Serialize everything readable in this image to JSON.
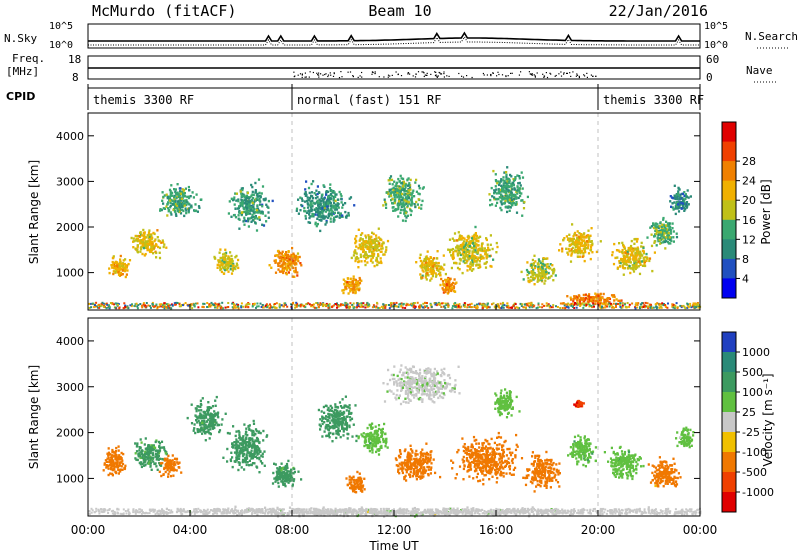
{
  "header": {
    "station": "McMurdo (fitACF)",
    "beam": "Beam 10",
    "date": "22/Jan/2016"
  },
  "top_panels": {
    "nsky_label": "N.Sky",
    "nsky_ticks": [
      "10^5",
      "10^0"
    ],
    "nsearch_label": "N.Search",
    "nsearch_ticks": [
      "10^5",
      "10^0"
    ],
    "freq_label_1": "Freq.",
    "freq_label_2": "[MHz]",
    "freq_ticks": [
      "18",
      "8"
    ],
    "nave_label": "Nave",
    "nave_ticks": [
      "60",
      "0"
    ],
    "cpid_label": "CPID",
    "cpid_segments": [
      {
        "label": "themis 3300 RF",
        "start": 0,
        "end": 8
      },
      {
        "label": "normal (fast) 151 RF",
        "start": 8,
        "end": 20
      },
      {
        "label": "themis 3300 RF",
        "start": 20,
        "end": 24
      }
    ]
  },
  "chart_data": [
    {
      "type": "heatmap",
      "name": "power",
      "ylabel": "Slant Range [km]",
      "ylim": [
        180,
        4500
      ],
      "y_ticks": [
        "1000",
        "2000",
        "3000",
        "4000"
      ],
      "xlim": [
        0,
        24
      ],
      "colorbar": {
        "label": "Power [dB]",
        "ticks": [
          "4",
          "8",
          "12",
          "16",
          "20",
          "24",
          "28"
        ],
        "colors": [
          "#0000f0",
          "#2050c0",
          "#2a8a78",
          "#3aa870",
          "#c0c018",
          "#f0b000",
          "#f08000",
          "#f04000",
          "#e00000"
        ]
      },
      "blobs": [
        {
          "t": 1.2,
          "r": 1150,
          "w": 0.5,
          "h": 300,
          "v": 20
        },
        {
          "t": 2.3,
          "r": 1650,
          "w": 0.9,
          "h": 400,
          "v": 18
        },
        {
          "t": 3.5,
          "r": 2600,
          "w": 1.0,
          "h": 450,
          "v": 12
        },
        {
          "t": 5.4,
          "r": 1250,
          "w": 0.6,
          "h": 350,
          "v": 17
        },
        {
          "t": 6.3,
          "r": 2500,
          "w": 1.0,
          "h": 600,
          "v": 11
        },
        {
          "t": 7.8,
          "r": 1250,
          "w": 0.8,
          "h": 400,
          "v": 22
        },
        {
          "t": 9.2,
          "r": 2500,
          "w": 1.3,
          "h": 600,
          "v": 10
        },
        {
          "t": 10.3,
          "r": 750,
          "w": 0.5,
          "h": 250,
          "v": 21
        },
        {
          "t": 11.0,
          "r": 1550,
          "w": 0.9,
          "h": 500,
          "v": 18
        },
        {
          "t": 12.3,
          "r": 2700,
          "w": 1.0,
          "h": 600,
          "v": 13
        },
        {
          "t": 13.4,
          "r": 1150,
          "w": 0.7,
          "h": 400,
          "v": 19
        },
        {
          "t": 14.1,
          "r": 700,
          "w": 0.4,
          "h": 250,
          "v": 23
        },
        {
          "t": 15.0,
          "r": 1500,
          "w": 1.2,
          "h": 600,
          "v": 17
        },
        {
          "t": 16.4,
          "r": 2800,
          "w": 0.9,
          "h": 600,
          "v": 12
        },
        {
          "t": 17.7,
          "r": 1050,
          "w": 0.8,
          "h": 400,
          "v": 16
        },
        {
          "t": 19.2,
          "r": 1650,
          "w": 0.9,
          "h": 450,
          "v": 19
        },
        {
          "t": 19.8,
          "r": 450,
          "w": 1.4,
          "h": 160,
          "v": 24
        },
        {
          "t": 21.3,
          "r": 1350,
          "w": 1.0,
          "h": 500,
          "v": 18
        },
        {
          "t": 22.5,
          "r": 1900,
          "w": 0.7,
          "h": 400,
          "v": 13
        },
        {
          "t": 23.2,
          "r": 2600,
          "w": 0.5,
          "h": 400,
          "v": 9
        }
      ]
    },
    {
      "type": "heatmap",
      "name": "velocity",
      "ylabel": "Slant Range [km]",
      "ylim": [
        180,
        4500
      ],
      "y_ticks": [
        "1000",
        "2000",
        "3000",
        "4000"
      ],
      "xlabel": "Time UT",
      "x_ticks": [
        "00:00",
        "04:00",
        "08:00",
        "12:00",
        "16:00",
        "20:00",
        "00:00"
      ],
      "xlim": [
        0,
        24
      ],
      "colorbar": {
        "label": "Velocity [m s⁻¹]",
        "ticks": [
          "1000",
          "500",
          "100",
          "25",
          "-25",
          "-100",
          "-500",
          "-1000"
        ],
        "colors": [
          "#2040c0",
          "#2a8a78",
          "#3c9a60",
          "#60c040",
          "#c8c8c8",
          "#f0c000",
          "#f07800",
          "#f04000",
          "#e00000"
        ]
      },
      "blobs": [
        {
          "t": 1.0,
          "r": 1400,
          "w": 0.6,
          "h": 400,
          "v": -150
        },
        {
          "t": 2.4,
          "r": 1550,
          "w": 0.9,
          "h": 450,
          "v": 120
        },
        {
          "t": 3.2,
          "r": 1300,
          "w": 0.5,
          "h": 300,
          "v": -250
        },
        {
          "t": 4.6,
          "r": 2300,
          "w": 0.8,
          "h": 550,
          "v": 140
        },
        {
          "t": 6.2,
          "r": 1700,
          "w": 1.0,
          "h": 650,
          "v": 160
        },
        {
          "t": 7.7,
          "r": 1100,
          "w": 0.7,
          "h": 400,
          "v": 130
        },
        {
          "t": 9.7,
          "r": 2300,
          "w": 0.9,
          "h": 600,
          "v": 180
        },
        {
          "t": 10.5,
          "r": 900,
          "w": 0.5,
          "h": 300,
          "v": -200
        },
        {
          "t": 11.2,
          "r": 1900,
          "w": 0.7,
          "h": 450,
          "v": 70
        },
        {
          "t": 13.0,
          "r": 3100,
          "w": 1.8,
          "h": 550,
          "v": 10
        },
        {
          "t": 12.8,
          "r": 1350,
          "w": 1.1,
          "h": 500,
          "v": -240
        },
        {
          "t": 15.6,
          "r": 1450,
          "w": 1.6,
          "h": 650,
          "v": -230
        },
        {
          "t": 16.3,
          "r": 2700,
          "w": 0.6,
          "h": 400,
          "v": 60
        },
        {
          "t": 17.8,
          "r": 1200,
          "w": 0.9,
          "h": 500,
          "v": -180
        },
        {
          "t": 19.3,
          "r": 1650,
          "w": 0.7,
          "h": 400,
          "v": 80
        },
        {
          "t": 19.2,
          "r": 2650,
          "w": 0.25,
          "h": 120,
          "v": -900
        },
        {
          "t": 21.0,
          "r": 1350,
          "w": 0.9,
          "h": 450,
          "v": 70
        },
        {
          "t": 22.6,
          "r": 1100,
          "w": 0.8,
          "h": 450,
          "v": -140
        },
        {
          "t": 23.4,
          "r": 1900,
          "w": 0.4,
          "h": 300,
          "v": 50
        },
        {
          "t": 12.0,
          "r": 300,
          "w": 12.0,
          "h": 120,
          "v": 5
        }
      ]
    }
  ]
}
